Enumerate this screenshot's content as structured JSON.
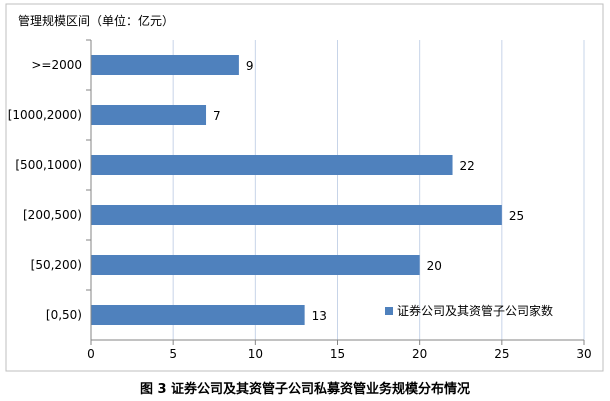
{
  "chart_data": {
    "type": "bar",
    "orientation": "horizontal",
    "categories": [
      ">=2000",
      "[1000,2000)",
      "[500,1000)",
      "[200,500)",
      "[50,200)",
      "[0,50)"
    ],
    "series": [
      {
        "name": "证券公司及其资管子公司家数",
        "values": [
          9,
          7,
          22,
          25,
          20,
          13
        ],
        "color": "#4f81bd"
      }
    ],
    "y_axis_title": "管理规模区间（单位：亿元）",
    "xlim": [
      0,
      30
    ],
    "x_ticks": [
      0,
      5,
      10,
      15,
      20,
      25,
      30
    ],
    "grid": "vertical",
    "legend_position": "bottom-right"
  },
  "caption": "图 3    证券公司及其资管子公司私募资管业务规模分布情况",
  "colors": {
    "bar": "#4f81bd",
    "grid": "#c7d4e8",
    "frame": "#bfbfbf",
    "axis": "#868686"
  }
}
